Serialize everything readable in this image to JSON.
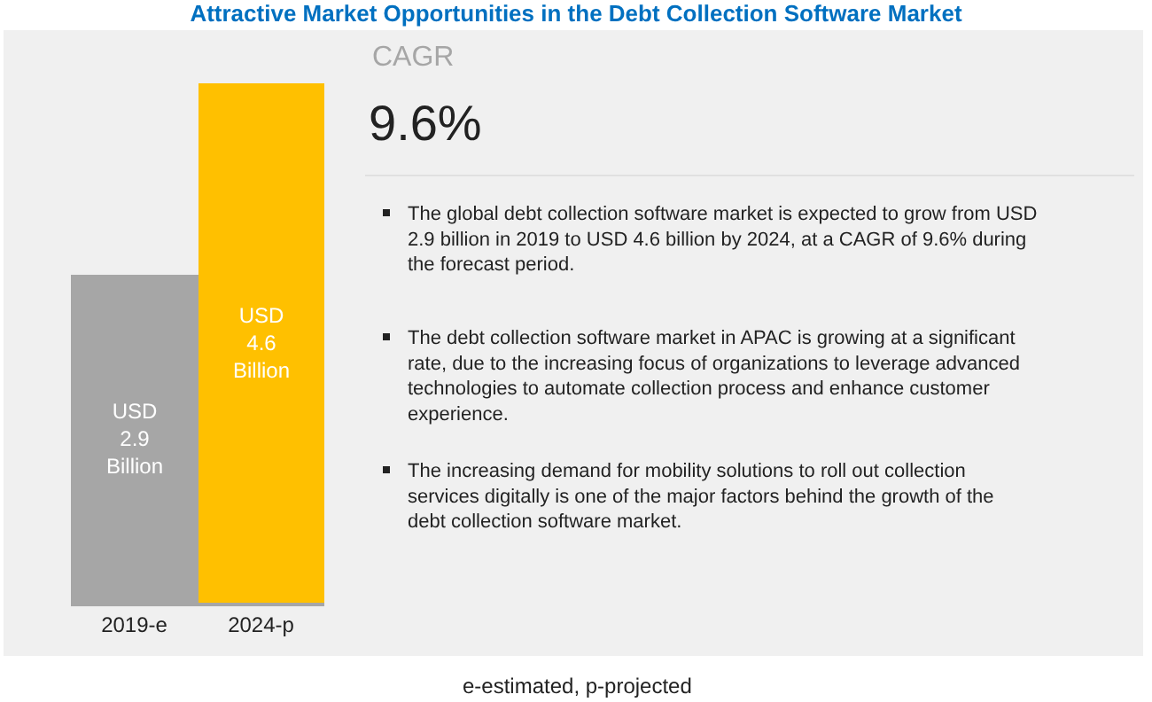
{
  "chart_data": {
    "type": "bar",
    "title": "Attractive Market Opportunities in the Debt Collection Software Market",
    "categories": [
      "2019-e",
      "2024-p"
    ],
    "values": [
      2.9,
      4.6
    ],
    "colors": [
      "#a6a6a6",
      "#ffc000"
    ],
    "value_labels": [
      "USD\n2.9\nBillion",
      "USD\n4.6\nBillion"
    ],
    "annotations": [
      "CAGR",
      "9.6%",
      "The global debt collection software market is expected to grow from USD 2.9 billion in 2019 to USD 4.6 billion by 2024, at a CAGR of 9.6% during the forecast period.",
      "The debt collection software market in APAC is growing at a significant rate, due to the increasing focus of organizations to leverage advanced technologies to automate collection process and enhance customer experience.",
      "The increasing demand for mobility solutions to roll out collection services digitally is one of the major factors behind the growth of the debt collection software market.",
      "e-estimated, p-projected"
    ],
    "grid": false,
    "legend": false
  }
}
